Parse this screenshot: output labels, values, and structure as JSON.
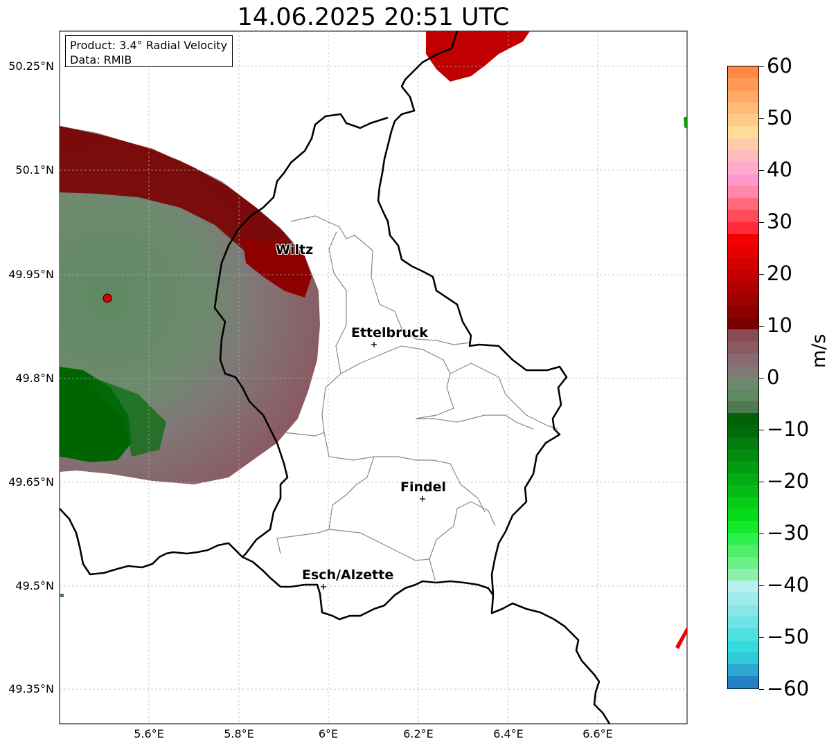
{
  "title": "14.06.2025 20:51 UTC",
  "info": {
    "product": "Product: 3.4° Radial Velocity",
    "data": "Data: RMIB"
  },
  "lat_labels": [
    "50.25°N",
    "50.1°N",
    "49.95°N",
    "49.8°N",
    "49.65°N",
    "49.5°N",
    "49.35°N"
  ],
  "lon_labels": [
    "5.6°E",
    "5.8°E",
    "6°E",
    "6.2°E",
    "6.4°E",
    "6.6°E"
  ],
  "cities": [
    {
      "name": "Wiltz"
    },
    {
      "name": "Ettelbruck"
    },
    {
      "name": "Findel"
    },
    {
      "name": "Esch/Alzette"
    }
  ],
  "colorbar": {
    "unit": "m/s",
    "ticks": [
      "60",
      "50",
      "40",
      "30",
      "20",
      "10",
      "0",
      "−10",
      "−20",
      "−30",
      "−40",
      "−50",
      "−60"
    ],
    "range": [
      -60,
      60
    ],
    "colors": [
      "#2282c5",
      "#2aa8d0",
      "#31c8d8",
      "#35dcde",
      "#4fe0e0",
      "#6de4e4",
      "#88e8e8",
      "#a0ecec",
      "#b8f0f0",
      "#8ef0aa",
      "#6cf08a",
      "#4ef06a",
      "#2ef04a",
      "#12ea2a",
      "#06dc1a",
      "#05cc16",
      "#04bc14",
      "#03ac12",
      "#039c10",
      "#028c0e",
      "#027c0c",
      "#026c0a",
      "#026208",
      "#4e7a52",
      "#5e8a62",
      "#6e8a6e",
      "#807878",
      "#8a6a72",
      "#8a5a62",
      "#8a4a52",
      "#7a0000",
      "#8c0000",
      "#9e0000",
      "#b00000",
      "#c20000",
      "#d40000",
      "#e60000",
      "#f40000",
      "#ff2a3a",
      "#ff4a5a",
      "#ff6a7a",
      "#ff88aa",
      "#ff99cc",
      "#ffaacc",
      "#ffbbbb",
      "#ffccaa",
      "#ffdd99",
      "#ffcc88",
      "#ffbb77",
      "#ffaa66",
      "#ff9955",
      "#ff8844"
    ]
  },
  "radar_site": {
    "color": "#e00000"
  },
  "velocity_colors": {
    "inbound": "#006400",
    "zero": "#6e8a6e",
    "outbound_weak": "#8a5a62",
    "outbound_strong": "#7a0000"
  }
}
